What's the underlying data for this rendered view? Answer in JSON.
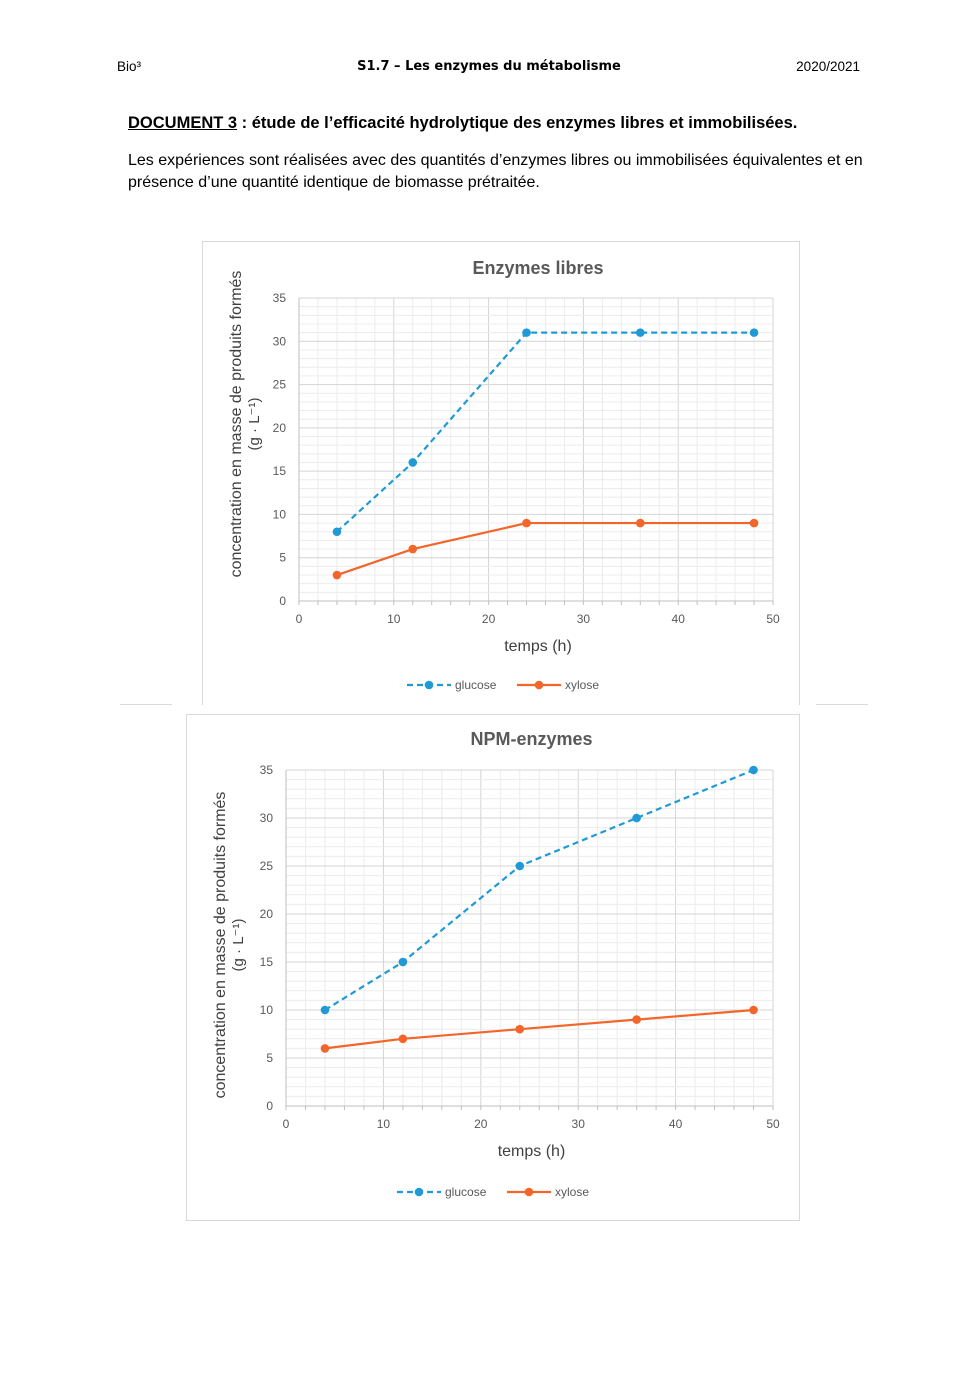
{
  "header": {
    "left": "Bio³",
    "center": "S1.7 – Les enzymes du métabolisme",
    "right": "2020/2021"
  },
  "document": {
    "label": "DOCUMENT 3",
    "title_rest": " : étude de l’efficacité hydrolytique des enzymes libres et immobilisées.",
    "intro": "Les expériences sont réalisées avec des quantités d’enzymes libres ou immobilisées équivalentes et en présence d’une quantité identique de biomasse prétraitée."
  },
  "colors": {
    "glucose": "#1f9ad6",
    "xylose": "#f4652a",
    "grid": "#d9d9d9"
  },
  "chart_data": [
    {
      "type": "line",
      "title": "Enzymes libres",
      "xlabel": "temps (h)",
      "ylabel": "concentration en masse de produits formés",
      "ylabel2": "(g · L⁻¹)",
      "xlim": [
        0,
        50
      ],
      "ylim": [
        0,
        35
      ],
      "xticks": [
        "0",
        "10",
        "20",
        "30",
        "40",
        "50"
      ],
      "yticks": [
        "0",
        "5",
        "10",
        "15",
        "20",
        "25",
        "30",
        "35"
      ],
      "legend": "bottom",
      "series": [
        {
          "name": "glucose",
          "style": "dashed",
          "x": [
            4,
            12,
            24,
            36,
            48
          ],
          "y": [
            8,
            16,
            31,
            31,
            31
          ]
        },
        {
          "name": "xylose",
          "style": "solid",
          "x": [
            4,
            12,
            24,
            36,
            48
          ],
          "y": [
            3,
            6,
            9,
            9,
            9
          ]
        }
      ]
    },
    {
      "type": "line",
      "title": "NPM-enzymes",
      "xlabel": "temps (h)",
      "ylabel": "concentration en masse de produits formés",
      "ylabel2": "(g · L⁻¹)",
      "xlim": [
        0,
        50
      ],
      "ylim": [
        0,
        35
      ],
      "xticks": [
        "0",
        "10",
        "20",
        "30",
        "40",
        "50"
      ],
      "yticks": [
        "0",
        "5",
        "10",
        "15",
        "20",
        "25",
        "30",
        "35"
      ],
      "legend": "bottom",
      "series": [
        {
          "name": "glucose",
          "style": "dashed",
          "x": [
            4,
            12,
            24,
            36,
            48
          ],
          "y": [
            10,
            15,
            25,
            30,
            35
          ]
        },
        {
          "name": "xylose",
          "style": "solid",
          "x": [
            4,
            12,
            24,
            36,
            48
          ],
          "y": [
            6,
            7,
            8,
            9,
            10
          ]
        }
      ]
    }
  ]
}
